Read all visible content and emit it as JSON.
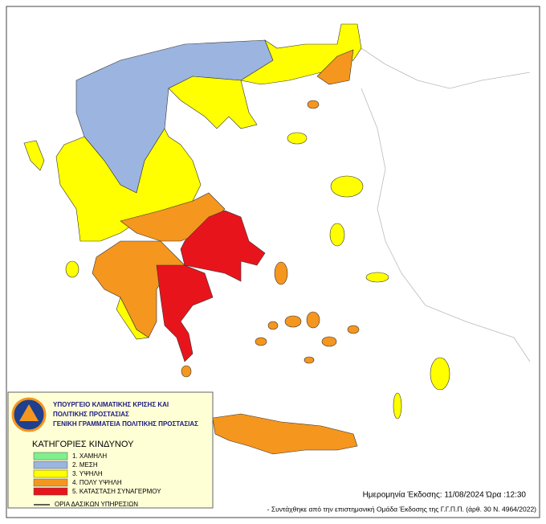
{
  "header": {
    "lines": [
      "ΥΠΟΥΡΓΕΙΟ ΚΛΙΜΑΤΙΚΗΣ ΚΡΙΣΗΣ ΚΑΙ",
      "ΠΟΛΙΤΙΚΗΣ ΠΡΟΣΤΑΣΙΑΣ",
      "ΓΕΝΙΚΗ ΓΡΑΜΜΑΤΕΙΑ ΠΟΛΙΤΙΚΗΣ ΠΡΟΣΤΑΣΙΑΣ"
    ]
  },
  "legend": {
    "title": "ΚΑΤΗΓΟΡΙΕΣ ΚΙΝΔΥΝΟΥ",
    "categories": [
      {
        "label": "1. ΧΑΜΗΛΗ",
        "color": "#7ff08c"
      },
      {
        "label": "2. ΜΕΣΗ",
        "color": "#9bb5e0"
      },
      {
        "label": "3. ΥΨΗΛΗ",
        "color": "#ffff00"
      },
      {
        "label": "4. ΠΟΛΥ ΥΨΗΛΗ",
        "color": "#f5961e"
      },
      {
        "label": "5. ΚΑΤΑΣΤΑΣΗ ΣΥΝΑΓΕΡΜΟΥ",
        "color": "#e8141c"
      }
    ],
    "boundary_label": "ΟΡΙΑ ΔΑΣΙΚΩΝ ΥΠΗΡΕΣΙΩΝ"
  },
  "footer": {
    "issued": "Ημερομηνία Έκδοσης: 11/08/2024  Ώρα :12:30",
    "note": "- Συντάχθηκε από την επιστημονική  Ομάδα  Έκδοσης της Γ.Γ.Π.Π. (άρθ. 30 Ν. 4964/2022)"
  }
}
